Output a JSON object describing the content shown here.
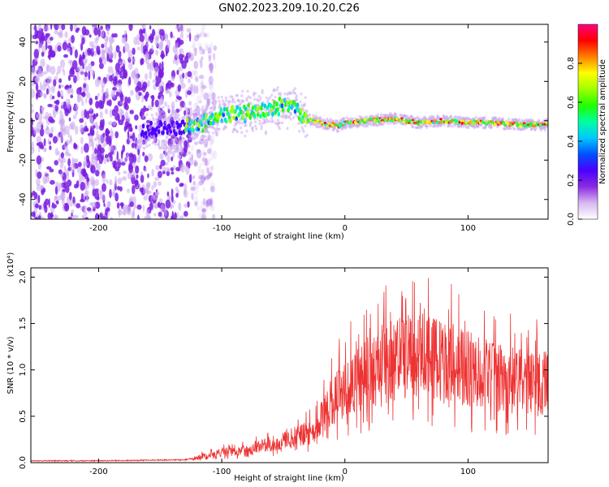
{
  "figure": {
    "title": "GN02.2023.209.10.20.C26"
  },
  "chart_data": [
    {
      "type": "heatmap",
      "xlabel": "Height of straight line (km)",
      "ylabel": "Frequency (Hz)",
      "xlim": [
        -255,
        165
      ],
      "ylim": [
        -50,
        49
      ],
      "xticks": [
        -200,
        -100,
        0,
        100
      ],
      "yticks": [
        -40,
        -20,
        0,
        20,
        40
      ],
      "colorbar": {
        "label": "Normalized spectral amplitude",
        "range": [
          0,
          1
        ],
        "ticks": [
          0.0,
          0.2,
          0.4,
          0.6,
          0.8
        ],
        "colors": [
          "#ffffff",
          "#d8b8f0",
          "#8a2be2",
          "#4b00ff",
          "#0050ff",
          "#00c8ff",
          "#00ffa0",
          "#20ff00",
          "#a0ff00",
          "#ffff00",
          "#ff8000",
          "#ff0000",
          "#ff007f"
        ]
      },
      "ridge": {
        "x": [
          -160,
          -140,
          -120,
          -100,
          -80,
          -60,
          -50,
          -40,
          -35,
          -30,
          -20,
          -10,
          -5,
          0,
          20,
          40,
          60,
          80,
          100,
          120,
          140,
          165
        ],
        "y": [
          -5,
          -4,
          -2,
          3,
          4,
          5,
          8,
          8,
          2,
          1,
          -1,
          -2,
          -3,
          -1,
          0,
          1,
          -1,
          0,
          -1,
          -1,
          -2,
          -2
        ]
      },
      "noise_region": {
        "x_from": -255,
        "x_to": -125
      }
    },
    {
      "type": "line",
      "xlabel": "Height of straight line (km)",
      "ylabel": "SNR (10 * v/v)",
      "yscale_label": "(x10⁴)",
      "xlim": [
        -255,
        165
      ],
      "ylim": [
        0,
        2.1
      ],
      "xticks": [
        -200,
        -100,
        0,
        100
      ],
      "yticks": [
        0.0,
        0.5,
        1.0,
        1.5,
        2.0
      ],
      "series": [
        {
          "color": "#ee3333",
          "envelope": {
            "x": [
              -255,
              -200,
              -130,
              -100,
              -80,
              -60,
              -40,
              -25,
              -20,
              -15,
              0,
              20,
              40,
              60,
              75,
              80,
              100,
              120,
              140,
              165
            ],
            "y": [
              0.02,
              0.02,
              0.03,
              0.12,
              0.14,
              0.22,
              0.3,
              0.36,
              0.48,
              0.65,
              0.85,
              1.05,
              1.2,
              1.25,
              1.2,
              1.15,
              1.1,
              1.0,
              0.95,
              0.92
            ]
          }
        }
      ]
    }
  ]
}
